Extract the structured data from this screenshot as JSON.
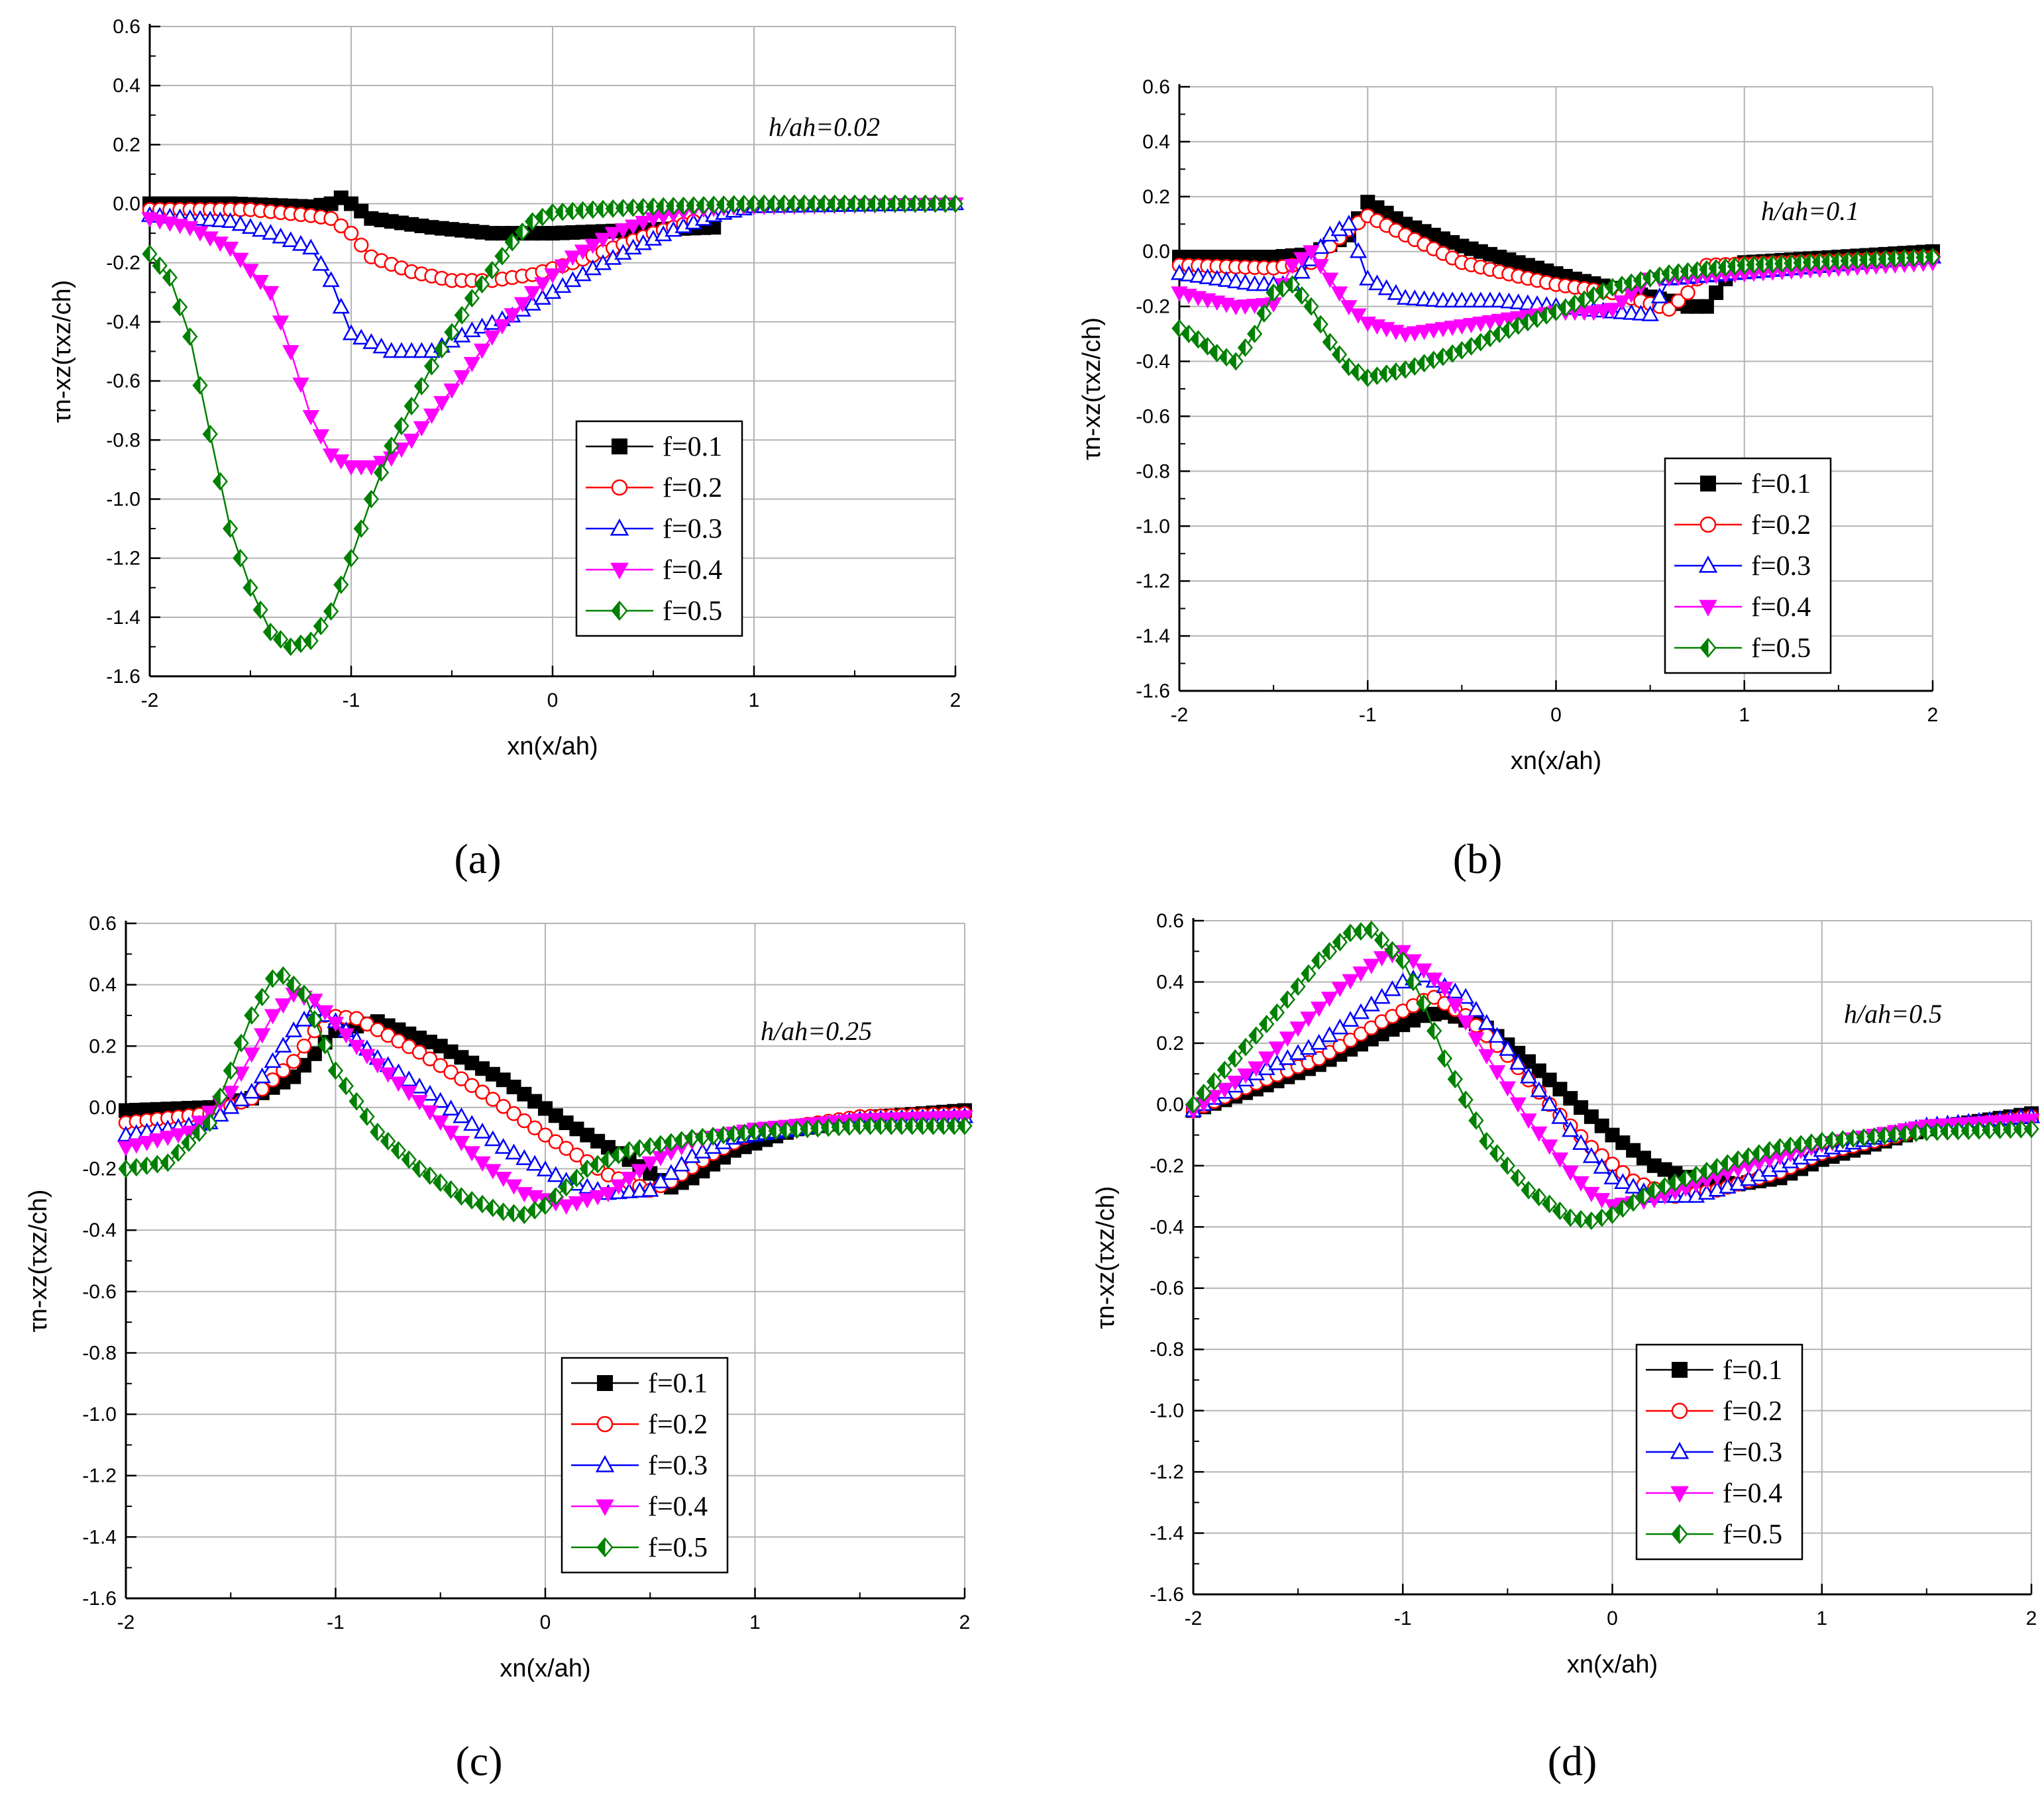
{
  "figure": {
    "series_legend": [
      {
        "f": "0.1",
        "color": "#000000",
        "marker": "square-filled"
      },
      {
        "f": "0.2",
        "color": "#ff0000",
        "marker": "circle-open"
      },
      {
        "f": "0.3",
        "color": "#0000ff",
        "marker": "triangle-up-open"
      },
      {
        "f": "0.4",
        "color": "#ff00ff",
        "marker": "triangle-down-filled"
      },
      {
        "f": "0.5",
        "color": "#008000",
        "marker": "diamond-half"
      }
    ]
  },
  "chart_data": [
    {
      "type": "line",
      "panel_label": "(a)",
      "annotation": "h/ah=0.02",
      "xlabel": "xn(x/ah)",
      "ylabel": "τn-xz(τxz/ch)",
      "xlim": [
        -2,
        2
      ],
      "ylim": [
        -1.6,
        0.6
      ],
      "xticks": [
        -2,
        -1,
        0,
        1,
        2
      ],
      "yticks": [
        -1.6,
        -1.4,
        -1.2,
        -1.0,
        -0.8,
        -0.6,
        -0.4,
        -0.2,
        0.0,
        0.2,
        0.4,
        0.6
      ],
      "xtick_labels": [
        "-2",
        "-1",
        "0",
        "1",
        "2"
      ],
      "ytick_labels": [
        "-1.6",
        "-1.4",
        "-1.2",
        "-1.0",
        "-0.8",
        "-0.6",
        "-0.4",
        "-0.2",
        "0.0",
        "0.2",
        "0.4",
        "0.6"
      ],
      "series": [
        {
          "name": "f=0.1",
          "x": [
            -2,
            -1.6,
            -1.2,
            -1.1,
            -1.05,
            -1.0,
            -0.9,
            -0.6,
            -0.3,
            0.0,
            0.4,
            0.8
          ],
          "y": [
            0.0,
            0.0,
            -0.01,
            0.0,
            0.02,
            0.0,
            -0.05,
            -0.08,
            -0.1,
            -0.1,
            -0.09,
            -0.08
          ]
        },
        {
          "name": "f=0.2",
          "x": [
            -2,
            -1.5,
            -1.2,
            -1.1,
            -1.0,
            -0.9,
            -0.7,
            -0.5,
            -0.3,
            -0.1,
            0.1,
            0.3,
            0.5,
            0.7
          ],
          "y": [
            -0.02,
            -0.02,
            -0.04,
            -0.05,
            -0.1,
            -0.18,
            -0.23,
            -0.26,
            -0.26,
            -0.24,
            -0.2,
            -0.15,
            -0.1,
            -0.06
          ]
        },
        {
          "name": "f=0.3",
          "x": [
            -2,
            -1.6,
            -1.4,
            -1.2,
            -1.1,
            -1.0,
            -0.8,
            -0.6,
            -0.4,
            -0.2,
            0.0,
            0.2,
            0.4,
            0.6,
            0.8,
            1.0,
            2.0
          ],
          "y": [
            -0.04,
            -0.06,
            -0.1,
            -0.15,
            -0.26,
            -0.44,
            -0.5,
            -0.5,
            -0.43,
            -0.38,
            -0.3,
            -0.22,
            -0.15,
            -0.09,
            -0.04,
            -0.01,
            0.0
          ]
        },
        {
          "name": "f=0.4",
          "x": [
            -2,
            -1.8,
            -1.6,
            -1.4,
            -1.3,
            -1.2,
            -1.1,
            -1.0,
            -0.9,
            -0.8,
            -0.7,
            -0.5,
            -0.3,
            -0.1,
            0.1,
            0.3,
            0.5,
            0.7,
            0.9,
            2.0
          ],
          "y": [
            -0.05,
            -0.08,
            -0.15,
            -0.3,
            -0.5,
            -0.72,
            -0.85,
            -0.89,
            -0.89,
            -0.86,
            -0.8,
            -0.63,
            -0.45,
            -0.3,
            -0.18,
            -0.1,
            -0.05,
            -0.02,
            -0.01,
            0.0
          ]
        },
        {
          "name": "f=0.5",
          "x": [
            -2,
            -1.9,
            -1.8,
            -1.7,
            -1.6,
            -1.5,
            -1.4,
            -1.3,
            -1.2,
            -1.1,
            -1.0,
            -0.9,
            -0.8,
            -0.6,
            -0.4,
            -0.2,
            -0.1,
            0.0,
            0.2,
            0.5,
            1.0,
            2.0
          ],
          "y": [
            -0.17,
            -0.25,
            -0.45,
            -0.78,
            -1.1,
            -1.3,
            -1.45,
            -1.5,
            -1.48,
            -1.38,
            -1.2,
            -1.0,
            -0.82,
            -0.55,
            -0.32,
            -0.13,
            -0.06,
            -0.03,
            -0.02,
            -0.01,
            0.0,
            0.0
          ]
        }
      ]
    },
    {
      "type": "line",
      "panel_label": "(b)",
      "annotation": "h/ah=0.1",
      "xlabel": "xn(x/ah)",
      "ylabel": "τn-xz(τxz/ch)",
      "xlim": [
        -2,
        2
      ],
      "ylim": [
        -1.6,
        0.6
      ],
      "xticks": [
        -2,
        -1,
        0,
        1,
        2
      ],
      "yticks": [
        -1.6,
        -1.4,
        -1.2,
        -1.0,
        -0.8,
        -0.6,
        -0.4,
        -0.2,
        0.0,
        0.2,
        0.4,
        0.6
      ],
      "xtick_labels": [
        "-2",
        "-1",
        "0",
        "1",
        "2"
      ],
      "ytick_labels": [
        "-1.6",
        "-1.4",
        "-1.2",
        "-1.0",
        "-0.8",
        "-0.6",
        "-0.4",
        "-0.2",
        "0.0",
        "0.2",
        "0.4",
        "0.6"
      ],
      "series": [
        {
          "name": "f=0.1",
          "x": [
            -2,
            -1.5,
            -1.3,
            -1.1,
            -1.0,
            -0.8,
            -0.5,
            -0.2,
            0.1,
            0.4,
            0.6,
            0.7,
            0.8,
            0.9,
            1.0,
            2.0
          ],
          "y": [
            -0.02,
            -0.02,
            -0.01,
            0.06,
            0.18,
            0.1,
            0.02,
            -0.04,
            -0.1,
            -0.15,
            -0.18,
            -0.2,
            -0.2,
            -0.1,
            -0.04,
            0.0
          ]
        },
        {
          "name": "f=0.2",
          "x": [
            -2,
            -1.5,
            -1.3,
            -1.1,
            -1.0,
            -0.8,
            -0.5,
            -0.2,
            0.0,
            0.3,
            0.5,
            0.6,
            0.7,
            0.8,
            2.0
          ],
          "y": [
            -0.05,
            -0.06,
            -0.04,
            0.08,
            0.13,
            0.06,
            -0.04,
            -0.09,
            -0.12,
            -0.15,
            -0.19,
            -0.21,
            -0.15,
            -0.05,
            -0.02
          ]
        },
        {
          "name": "f=0.3",
          "x": [
            -2,
            -1.6,
            -1.4,
            -1.2,
            -1.1,
            -1.0,
            -0.8,
            -0.6,
            -0.3,
            0.0,
            0.3,
            0.5,
            0.6,
            2.0
          ],
          "y": [
            -0.08,
            -0.12,
            -0.12,
            0.06,
            0.1,
            -0.1,
            -0.17,
            -0.18,
            -0.18,
            -0.2,
            -0.22,
            -0.23,
            -0.1,
            -0.02
          ]
        },
        {
          "name": "f=0.4",
          "x": [
            -2,
            -1.7,
            -1.5,
            -1.4,
            -1.3,
            -1.2,
            -1.1,
            -1.0,
            -0.8,
            -0.5,
            -0.2,
            0.0,
            0.2,
            0.3,
            0.5,
            2.0
          ],
          "y": [
            -0.15,
            -0.2,
            -0.19,
            -0.05,
            0.0,
            -0.1,
            -0.2,
            -0.26,
            -0.3,
            -0.27,
            -0.24,
            -0.22,
            -0.22,
            -0.21,
            -0.1,
            -0.04
          ]
        },
        {
          "name": "f=0.5",
          "x": [
            -2,
            -1.9,
            -1.8,
            -1.7,
            -1.6,
            -1.5,
            -1.4,
            -1.3,
            -1.2,
            -1.1,
            -1.0,
            -0.8,
            -0.5,
            -0.2,
            0.0,
            0.3,
            0.6,
            1.0,
            2.0
          ],
          "y": [
            -0.28,
            -0.32,
            -0.37,
            -0.4,
            -0.3,
            -0.15,
            -0.12,
            -0.2,
            -0.33,
            -0.42,
            -0.46,
            -0.43,
            -0.36,
            -0.27,
            -0.22,
            -0.13,
            -0.08,
            -0.05,
            -0.02
          ]
        }
      ]
    },
    {
      "type": "line",
      "panel_label": "(c)",
      "annotation": "h/ah=0.25",
      "xlabel": "xn(x/ah)",
      "ylabel": "τn-xz(τxz/ch)",
      "xlim": [
        -2,
        2
      ],
      "ylim": [
        -1.6,
        0.6
      ],
      "xticks": [
        -2,
        -1,
        0,
        1,
        2
      ],
      "yticks": [
        -1.6,
        -1.4,
        -1.2,
        -1.0,
        -0.8,
        -0.6,
        -0.4,
        -0.2,
        0.0,
        0.2,
        0.4,
        0.6
      ],
      "xtick_labels": [
        "-2",
        "-1",
        "0",
        "1",
        "2"
      ],
      "ytick_labels": [
        "-1.6",
        "-1.4",
        "-1.2",
        "-1.0",
        "-0.8",
        "-0.6",
        "-0.4",
        "-0.2",
        "0.0",
        "0.2",
        "0.4",
        "0.6"
      ],
      "series": [
        {
          "name": "f=0.1",
          "x": [
            -2,
            -1.6,
            -1.4,
            -1.2,
            -1.0,
            -0.8,
            -0.5,
            -0.2,
            0.1,
            0.4,
            0.6,
            0.7,
            0.9,
            1.2,
            1.6,
            2.0
          ],
          "y": [
            -0.01,
            0.0,
            0.03,
            0.1,
            0.25,
            0.28,
            0.2,
            0.09,
            -0.05,
            -0.17,
            -0.26,
            -0.23,
            -0.14,
            -0.07,
            -0.03,
            -0.01
          ]
        },
        {
          "name": "f=0.2",
          "x": [
            -2,
            -1.6,
            -1.4,
            -1.2,
            -1.05,
            -0.9,
            -0.6,
            -0.3,
            0.0,
            0.3,
            0.5,
            0.6,
            0.8,
            1.0,
            1.5,
            2.0
          ],
          "y": [
            -0.05,
            -0.02,
            0.03,
            0.15,
            0.3,
            0.29,
            0.18,
            0.05,
            -0.09,
            -0.22,
            -0.27,
            -0.24,
            -0.15,
            -0.08,
            -0.03,
            -0.02
          ]
        },
        {
          "name": "f=0.3",
          "x": [
            -2,
            -1.6,
            -1.4,
            -1.2,
            -1.1,
            -1.0,
            -0.8,
            -0.5,
            -0.2,
            0.1,
            0.3,
            0.5,
            0.7,
            0.9,
            1.5,
            2.0
          ],
          "y": [
            -0.09,
            -0.05,
            0.05,
            0.25,
            0.32,
            0.28,
            0.16,
            0.02,
            -0.13,
            -0.24,
            -0.28,
            -0.27,
            -0.16,
            -0.1,
            -0.04,
            -0.03
          ]
        },
        {
          "name": "f=0.4",
          "x": [
            -2,
            -1.7,
            -1.5,
            -1.3,
            -1.2,
            -1.1,
            -0.9,
            -0.6,
            -0.3,
            -0.1,
            0.1,
            0.3,
            0.5,
            0.7,
            1.0,
            1.5,
            2.0
          ],
          "y": [
            -0.13,
            -0.08,
            0.05,
            0.3,
            0.37,
            0.35,
            0.2,
            0.02,
            -0.18,
            -0.28,
            -0.32,
            -0.28,
            -0.18,
            -0.11,
            -0.07,
            -0.04,
            -0.03
          ]
        },
        {
          "name": "f=0.5",
          "x": [
            -2,
            -1.8,
            -1.6,
            -1.5,
            -1.4,
            -1.3,
            -1.25,
            -1.15,
            -1.0,
            -0.8,
            -0.6,
            -0.4,
            -0.2,
            -0.1,
            0.0,
            0.2,
            0.4,
            0.7,
            1.0,
            1.5,
            2.0
          ],
          "y": [
            -0.2,
            -0.18,
            -0.05,
            0.12,
            0.3,
            0.42,
            0.43,
            0.37,
            0.12,
            -0.08,
            -0.2,
            -0.29,
            -0.34,
            -0.35,
            -0.32,
            -0.2,
            -0.14,
            -0.1,
            -0.08,
            -0.06,
            -0.06
          ]
        }
      ]
    },
    {
      "type": "line",
      "panel_label": "(d)",
      "annotation": "h/ah=0.5",
      "xlabel": "xn(x/ah)",
      "ylabel": "τn-xz(τxz/ch)",
      "xlim": [
        -2,
        2
      ],
      "ylim": [
        -1.6,
        0.6
      ],
      "xticks": [
        -2,
        -1,
        0,
        1,
        2
      ],
      "yticks": [
        -1.6,
        -1.4,
        -1.2,
        -1.0,
        -0.8,
        -0.6,
        -0.4,
        -0.2,
        0.0,
        0.2,
        0.4,
        0.6
      ],
      "xtick_labels": [
        "-2",
        "-1",
        "0",
        "1",
        "2"
      ],
      "ytick_labels": [
        "-1.6",
        "-1.4",
        "-1.2",
        "-1.0",
        "-0.8",
        "-0.6",
        "-0.4",
        "-0.2",
        "0.0",
        "0.2",
        "0.4",
        "0.6"
      ],
      "series": [
        {
          "name": "f=0.1",
          "x": [
            -2,
            -1.7,
            -1.4,
            -1.1,
            -0.9,
            -0.8,
            -0.6,
            -0.4,
            -0.2,
            0.0,
            0.2,
            0.4,
            0.6,
            0.8,
            1.0,
            1.5,
            2.0
          ],
          "y": [
            -0.02,
            0.05,
            0.13,
            0.23,
            0.29,
            0.3,
            0.25,
            0.14,
            0.02,
            -0.1,
            -0.2,
            -0.25,
            -0.26,
            -0.24,
            -0.18,
            -0.08,
            -0.03
          ]
        },
        {
          "name": "f=0.2",
          "x": [
            -2,
            -1.7,
            -1.4,
            -1.1,
            -0.9,
            -0.85,
            -0.7,
            -0.5,
            -0.3,
            -0.1,
            0.1,
            0.3,
            0.5,
            0.8,
            1.0,
            1.5,
            2.0
          ],
          "y": [
            -0.02,
            0.07,
            0.15,
            0.27,
            0.34,
            0.35,
            0.29,
            0.16,
            0.0,
            -0.14,
            -0.25,
            -0.3,
            -0.28,
            -0.22,
            -0.16,
            -0.08,
            -0.04
          ]
        },
        {
          "name": "f=0.3",
          "x": [
            -2,
            -1.7,
            -1.4,
            -1.2,
            -1.0,
            -0.9,
            -0.7,
            -0.5,
            -0.3,
            -0.1,
            0.0,
            0.2,
            0.4,
            0.6,
            0.8,
            1.0,
            1.5,
            2.0
          ],
          "y": [
            -0.02,
            0.1,
            0.2,
            0.3,
            0.4,
            0.42,
            0.35,
            0.18,
            0.0,
            -0.17,
            -0.24,
            -0.3,
            -0.3,
            -0.26,
            -0.2,
            -0.15,
            -0.07,
            -0.04
          ]
        },
        {
          "name": "f=0.4",
          "x": [
            -2,
            -1.7,
            -1.5,
            -1.3,
            -1.1,
            -1.0,
            -0.8,
            -0.6,
            -0.4,
            -0.2,
            -0.1,
            0.0,
            0.2,
            0.4,
            0.6,
            0.8,
            1.0,
            1.5,
            2.0
          ],
          "y": [
            -0.02,
            0.12,
            0.25,
            0.38,
            0.48,
            0.5,
            0.38,
            0.16,
            -0.05,
            -0.22,
            -0.29,
            -0.33,
            -0.31,
            -0.26,
            -0.21,
            -0.17,
            -0.13,
            -0.07,
            -0.05
          ]
        },
        {
          "name": "f=0.5",
          "x": [
            -2,
            -1.8,
            -1.6,
            -1.4,
            -1.25,
            -1.15,
            -1.0,
            -0.9,
            -0.8,
            -0.6,
            -0.4,
            -0.2,
            -0.1,
            0.0,
            0.2,
            0.4,
            0.6,
            0.8,
            1.0,
            1.5,
            2.0
          ],
          "y": [
            0.0,
            0.15,
            0.3,
            0.47,
            0.56,
            0.57,
            0.47,
            0.33,
            0.15,
            -0.12,
            -0.28,
            -0.37,
            -0.38,
            -0.36,
            -0.28,
            -0.23,
            -0.18,
            -0.14,
            -0.12,
            -0.09,
            -0.08
          ]
        }
      ]
    }
  ]
}
